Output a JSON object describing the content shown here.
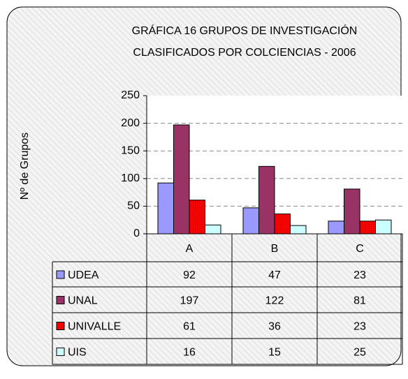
{
  "chart_data": {
    "type": "bar",
    "title": [
      "GRÁFICA 16 GRUPOS DE INVESTIGACIÓN",
      "CLASIFICADOS POR COLCIENCIAS - 2006"
    ],
    "y_label": "Nº de Grupos",
    "categories": [
      "A",
      "B",
      "C"
    ],
    "series": [
      {
        "name": "UDEA",
        "color": "#9999ff",
        "values": [
          92,
          47,
          23
        ]
      },
      {
        "name": "UNAL",
        "color": "#993366",
        "values": [
          197,
          122,
          81
        ]
      },
      {
        "name": "UNIVALLE",
        "color": "#ff0000",
        "values": [
          61,
          36,
          23
        ]
      },
      {
        "name": "UIS",
        "color": "#ccffff",
        "values": [
          16,
          15,
          25
        ]
      }
    ],
    "ylim": [
      0,
      250
    ],
    "yticks": [
      0,
      50,
      100,
      150,
      200,
      250
    ],
    "grid": true,
    "data_table": true
  }
}
